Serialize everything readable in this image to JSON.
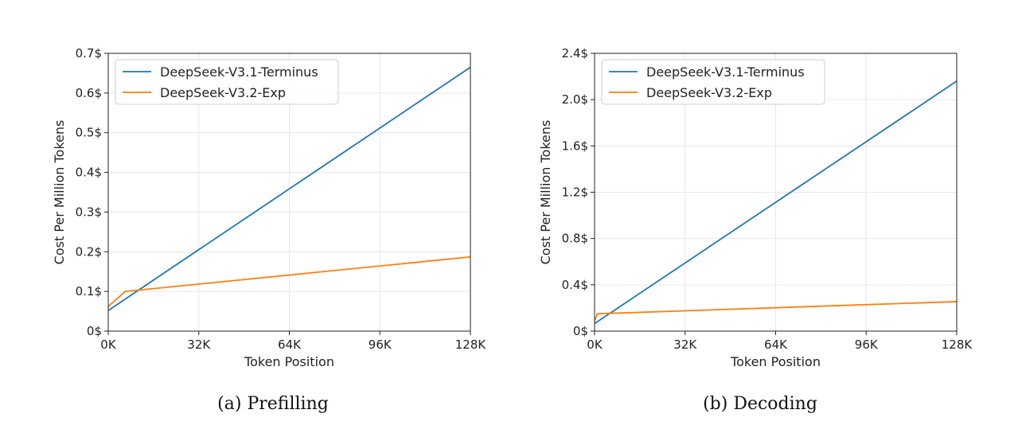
{
  "colors": {
    "series1": "#1f77b4",
    "series2": "#ff7f0e",
    "grid": "#e6e6e6",
    "axis": "#222222"
  },
  "chart_data": [
    {
      "type": "line",
      "caption": "(a)  Prefilling",
      "xlabel": "Token Position",
      "ylabel": "Cost Per Million Tokens",
      "xlim": [
        0,
        128
      ],
      "ylim": [
        0,
        0.7
      ],
      "xticks": [
        0,
        32,
        64,
        96,
        128
      ],
      "xtick_labels": [
        "0K",
        "32K",
        "64K",
        "96K",
        "128K"
      ],
      "yticks": [
        0,
        0.1,
        0.2,
        0.3,
        0.4,
        0.5,
        0.6,
        0.7
      ],
      "ytick_labels": [
        "0$",
        "0.1$",
        "0.2$",
        "0.3$",
        "0.4$",
        "0.5$",
        "0.6$",
        "0.7$"
      ],
      "grid": true,
      "legend": "top-left",
      "series": [
        {
          "name": "DeepSeek-V3.1-Terminus",
          "x": [
            0,
            128
          ],
          "y": [
            0.052,
            0.665
          ]
        },
        {
          "name": "DeepSeek-V3.2-Exp",
          "x": [
            0,
            6,
            128
          ],
          "y": [
            0.062,
            0.1,
            0.187
          ]
        }
      ]
    },
    {
      "type": "line",
      "caption": "(b)  Decoding",
      "xlabel": "Token Position",
      "ylabel": "Cost Per Million Tokens",
      "xlim": [
        0,
        128
      ],
      "ylim": [
        0,
        2.4
      ],
      "xticks": [
        0,
        32,
        64,
        96,
        128
      ],
      "xtick_labels": [
        "0K",
        "32K",
        "64K",
        "96K",
        "128K"
      ],
      "yticks": [
        0,
        0.4,
        0.8,
        1.2,
        1.6,
        2.0,
        2.4
      ],
      "ytick_labels": [
        "0$",
        "0.4$",
        "0.8$",
        "1.2$",
        "1.6$",
        "2.0$",
        "2.4$"
      ],
      "grid": true,
      "legend": "top-left",
      "series": [
        {
          "name": "DeepSeek-V3.1-Terminus",
          "x": [
            0,
            128
          ],
          "y": [
            0.065,
            2.16
          ]
        },
        {
          "name": "DeepSeek-V3.2-Exp",
          "x": [
            0,
            1,
            128
          ],
          "y": [
            0.09,
            0.15,
            0.255
          ]
        }
      ]
    }
  ]
}
